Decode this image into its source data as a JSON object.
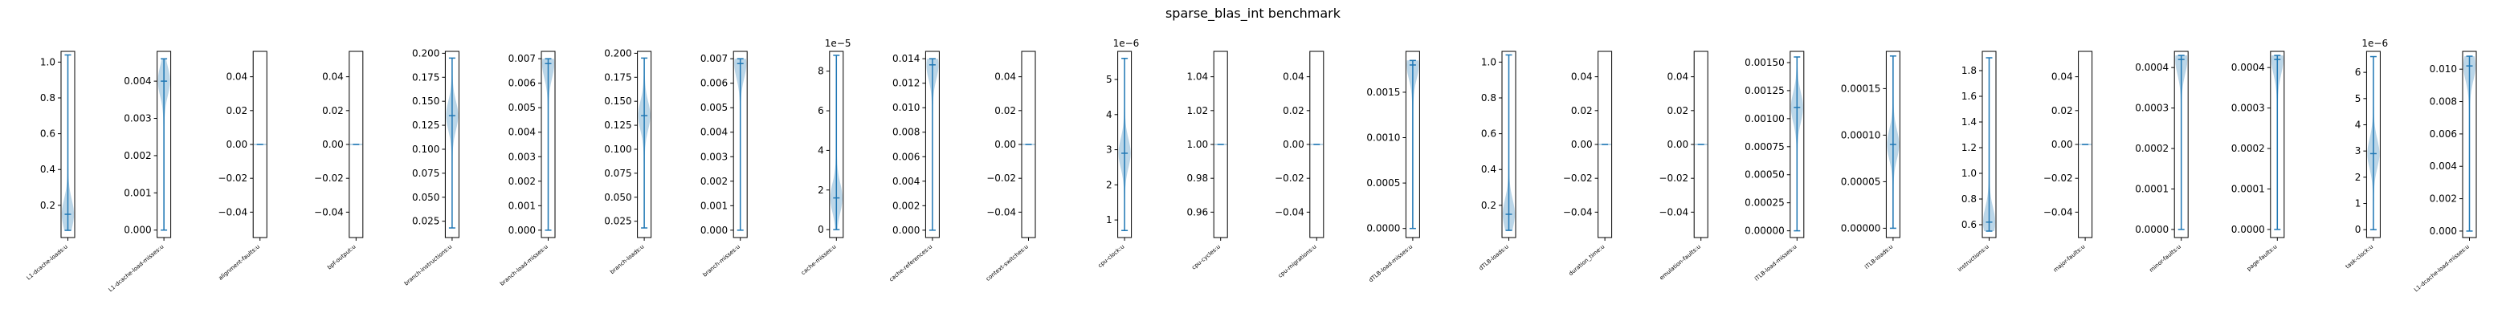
{
  "figure": {
    "title": "sparse_blas_int benchmark"
  },
  "colors": {
    "violin_fill": "#1f77b4",
    "violin_alpha": 0.3,
    "line": "#1f77b4",
    "axes": "#000000"
  },
  "chart_data": [
    {
      "type": "violin",
      "xlabel": "L1-dcache-loads:u",
      "yticks": [
        "0.2",
        "0.4",
        "0.6",
        "0.8",
        "1.0"
      ],
      "ylim": [
        0.02,
        1.06
      ],
      "min": 0.06,
      "max": 1.04,
      "median": 0.15,
      "density_center": 0.15
    },
    {
      "type": "violin",
      "xlabel": "L1-dcache-load-misses:u",
      "yticks": [
        "0.000",
        "0.001",
        "0.002",
        "0.003",
        "0.004"
      ],
      "ylim": [
        -0.0002,
        0.0048
      ],
      "min": 0.0,
      "max": 0.0046,
      "median": 0.004,
      "density_center": 0.004
    },
    {
      "type": "violin",
      "xlabel": "alignment-faults:u",
      "yticks": [
        "−0.04",
        "−0.02",
        "0.00",
        "0.02",
        "0.04"
      ],
      "ylim": [
        -0.055,
        0.055
      ],
      "min": 0.0,
      "max": 0.0,
      "median": 0.0,
      "density_center": 0.0
    },
    {
      "type": "violin",
      "xlabel": "bpf-output:u",
      "yticks": [
        "−0.04",
        "−0.02",
        "0.00",
        "0.02",
        "0.04"
      ],
      "ylim": [
        -0.055,
        0.055
      ],
      "min": 0.0,
      "max": 0.0,
      "median": 0.0,
      "density_center": 0.0
    },
    {
      "type": "violin",
      "xlabel": "branch-instructions:u",
      "yticks": [
        "0.025",
        "0.050",
        "0.075",
        "0.100",
        "0.125",
        "0.150",
        "0.175",
        "0.200"
      ],
      "ylim": [
        0.008,
        0.202
      ],
      "min": 0.018,
      "max": 0.195,
      "median": 0.135,
      "density_center": 0.135
    },
    {
      "type": "violin",
      "xlabel": "branch-load-misses:u",
      "yticks": [
        "0.000",
        "0.001",
        "0.002",
        "0.003",
        "0.004",
        "0.005",
        "0.006",
        "0.007"
      ],
      "ylim": [
        -0.0003,
        0.0073
      ],
      "min": 0.0,
      "max": 0.007,
      "median": 0.0068,
      "density_center": 0.0068
    },
    {
      "type": "violin",
      "xlabel": "branch-loads:u",
      "yticks": [
        "0.025",
        "0.050",
        "0.075",
        "0.100",
        "0.125",
        "0.150",
        "0.175",
        "0.200"
      ],
      "ylim": [
        0.008,
        0.202
      ],
      "min": 0.018,
      "max": 0.195,
      "median": 0.135,
      "density_center": 0.135
    },
    {
      "type": "violin",
      "xlabel": "branch-misses:u",
      "yticks": [
        "0.000",
        "0.001",
        "0.002",
        "0.003",
        "0.004",
        "0.005",
        "0.006",
        "0.007"
      ],
      "ylim": [
        -0.0003,
        0.0073
      ],
      "min": 0.0,
      "max": 0.007,
      "median": 0.0068,
      "density_center": 0.0068
    },
    {
      "type": "violin",
      "xlabel": "cache-misses:u",
      "exponent": "1e−5",
      "yticks": [
        "0",
        "2",
        "4",
        "6",
        "8"
      ],
      "ylim": [
        -0.4,
        9.0
      ],
      "min": 0.0,
      "max": 8.8,
      "median": 1.6,
      "density_center": 1.6
    },
    {
      "type": "violin",
      "xlabel": "cache-references:u",
      "yticks": [
        "0.000",
        "0.002",
        "0.004",
        "0.006",
        "0.008",
        "0.010",
        "0.012",
        "0.014"
      ],
      "ylim": [
        -0.0006,
        0.0146
      ],
      "min": 0.0,
      "max": 0.014,
      "median": 0.0135,
      "density_center": 0.0135
    },
    {
      "type": "violin",
      "xlabel": "context-switches:u",
      "yticks": [
        "−0.04",
        "−0.02",
        "0.00",
        "0.02",
        "0.04"
      ],
      "ylim": [
        -0.055,
        0.055
      ],
      "min": 0.0,
      "max": 0.0,
      "median": 0.0,
      "density_center": 0.0
    },
    {
      "type": "violin",
      "xlabel": "cpu-clock:u",
      "exponent": "1e−6",
      "yticks": [
        "1",
        "2",
        "3",
        "4",
        "5"
      ],
      "ylim": [
        0.5,
        5.8
      ],
      "min": 0.7,
      "max": 5.6,
      "median": 2.9,
      "density_center": 2.9
    },
    {
      "type": "violin",
      "xlabel": "cpu-cycles:u",
      "yticks": [
        "0.96",
        "0.98",
        "1.00",
        "1.02",
        "1.04"
      ],
      "ylim": [
        0.945,
        1.055
      ],
      "min": 1.0,
      "max": 1.0,
      "median": 1.0,
      "density_center": 1.0
    },
    {
      "type": "violin",
      "xlabel": "cpu-migrations:u",
      "yticks": [
        "−0.04",
        "−0.02",
        "0.00",
        "0.02",
        "0.04"
      ],
      "ylim": [
        -0.055,
        0.055
      ],
      "min": 0.0,
      "max": 0.0,
      "median": 0.0,
      "density_center": 0.0
    },
    {
      "type": "violin",
      "xlabel": "dTLB-load-misses:u",
      "yticks": [
        "0.0000",
        "0.0005",
        "0.0010",
        "0.0015"
      ],
      "ylim": [
        -0.0001,
        0.00195
      ],
      "min": 0.0,
      "max": 0.00185,
      "median": 0.0018,
      "density_center": 0.0018
    },
    {
      "type": "violin",
      "xlabel": "dTLB-loads:u",
      "yticks": [
        "0.2",
        "0.4",
        "0.6",
        "0.8",
        "1.0"
      ],
      "ylim": [
        0.02,
        1.06
      ],
      "min": 0.06,
      "max": 1.04,
      "median": 0.15,
      "density_center": 0.15
    },
    {
      "type": "violin",
      "xlabel": "duration_time:u",
      "yticks": [
        "−0.04",
        "−0.02",
        "0.00",
        "0.02",
        "0.04"
      ],
      "ylim": [
        -0.055,
        0.055
      ],
      "min": 0.0,
      "max": 0.0,
      "median": 0.0,
      "density_center": 0.0
    },
    {
      "type": "violin",
      "xlabel": "emulation-faults:u",
      "yticks": [
        "−0.04",
        "−0.02",
        "0.00",
        "0.02",
        "0.04"
      ],
      "ylim": [
        -0.055,
        0.055
      ],
      "min": 0.0,
      "max": 0.0,
      "median": 0.0,
      "density_center": 0.0
    },
    {
      "type": "violin",
      "xlabel": "iTLB-load-misses:u",
      "yticks": [
        "0.00000",
        "0.00025",
        "0.00050",
        "0.00075",
        "0.00100",
        "0.00125",
        "0.00150"
      ],
      "ylim": [
        -6e-05,
        0.0016
      ],
      "min": 0.0,
      "max": 0.00155,
      "median": 0.0011,
      "density_center": 0.0011
    },
    {
      "type": "violin",
      "xlabel": "iTLB-loads:u",
      "yticks": [
        "0.00000",
        "0.00005",
        "0.00010",
        "0.00015"
      ],
      "ylim": [
        -1e-05,
        0.00019
      ],
      "min": 0.0,
      "max": 0.000185,
      "median": 9e-05,
      "density_center": 9e-05
    },
    {
      "type": "violin",
      "xlabel": "instructions:u",
      "yticks": [
        "0.6",
        "0.8",
        "1.0",
        "1.2",
        "1.4",
        "1.6",
        "1.8"
      ],
      "ylim": [
        0.5,
        1.95
      ],
      "min": 0.55,
      "max": 1.9,
      "median": 0.62,
      "density_center": 0.62
    },
    {
      "type": "violin",
      "xlabel": "major-faults:u",
      "yticks": [
        "−0.04",
        "−0.02",
        "0.00",
        "0.02",
        "0.04"
      ],
      "ylim": [
        -0.055,
        0.055
      ],
      "min": 0.0,
      "max": 0.0,
      "median": 0.0,
      "density_center": 0.0
    },
    {
      "type": "violin",
      "xlabel": "minor-faults:u",
      "yticks": [
        "0.0000",
        "0.0001",
        "0.0002",
        "0.0003",
        "0.0004"
      ],
      "ylim": [
        -2e-05,
        0.00044
      ],
      "min": 0.0,
      "max": 0.00043,
      "median": 0.00042,
      "density_center": 0.00042
    },
    {
      "type": "violin",
      "xlabel": "page-faults:u",
      "yticks": [
        "0.0000",
        "0.0001",
        "0.0002",
        "0.0003",
        "0.0004"
      ],
      "ylim": [
        -2e-05,
        0.00044
      ],
      "min": 0.0,
      "max": 0.00043,
      "median": 0.00042,
      "density_center": 0.00042
    },
    {
      "type": "violin",
      "xlabel": "task-clock:u",
      "exponent": "1e−6",
      "yticks": [
        "0",
        "1",
        "2",
        "3",
        "4",
        "5",
        "6"
      ],
      "ylim": [
        -0.3,
        6.8
      ],
      "min": 0.0,
      "max": 6.6,
      "median": 2.9,
      "density_center": 2.9
    },
    {
      "type": "violin",
      "xlabel": "L1-dcache-load-misses:u",
      "yticks": [
        "0.000",
        "0.002",
        "0.004",
        "0.006",
        "0.008",
        "0.010"
      ],
      "ylim": [
        -0.0004,
        0.0111
      ],
      "min": 0.0,
      "max": 0.0108,
      "median": 0.0102,
      "density_center": 0.0102
    }
  ]
}
